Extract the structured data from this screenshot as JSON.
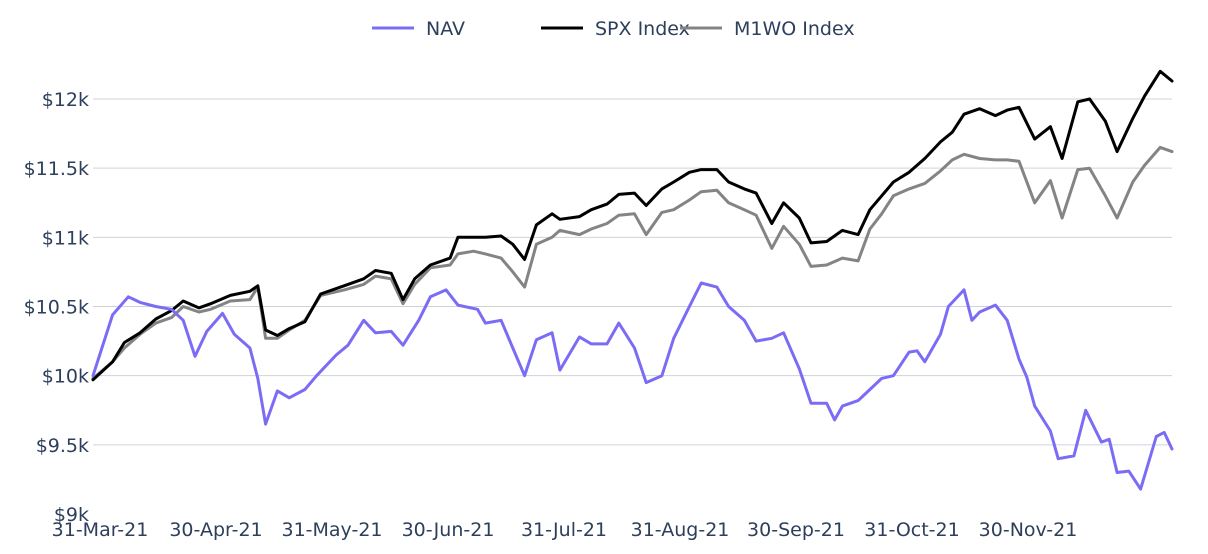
{
  "chart_data": {
    "type": "line",
    "title": "",
    "xlabel": "",
    "ylabel": "",
    "ylim": [
      9000,
      12500
    ],
    "grid": "horizontal",
    "legend_position": "top-center",
    "x_ticks": [
      "31-Mar-21",
      "30-Apr-21",
      "31-May-21",
      "30-Jun-21",
      "31-Jul-21",
      "31-Aug-21",
      "30-Sep-21",
      "31-Oct-21",
      "30-Nov-21"
    ],
    "y_ticks": [
      {
        "value": 9000,
        "label": "$9k"
      },
      {
        "value": 9500,
        "label": "$9.5k"
      },
      {
        "value": 10000,
        "label": "$10k"
      },
      {
        "value": 10500,
        "label": "$10.5k"
      },
      {
        "value": 11000,
        "label": "$11k"
      },
      {
        "value": 11500,
        "label": "$11.5k"
      },
      {
        "value": 12000,
        "label": "$12k"
      }
    ],
    "series": [
      {
        "name": "NAV",
        "color": "#7b6cf6",
        "points": [
          [
            "2021-03-31",
            10000
          ],
          [
            "2021-04-05",
            10440
          ],
          [
            "2021-04-09",
            10570
          ],
          [
            "2021-04-12",
            10530
          ],
          [
            "2021-04-16",
            10500
          ],
          [
            "2021-04-20",
            10480
          ],
          [
            "2021-04-23",
            10400
          ],
          [
            "2021-04-26",
            10140
          ],
          [
            "2021-04-29",
            10320
          ],
          [
            "2021-05-03",
            10450
          ],
          [
            "2021-05-06",
            10300
          ],
          [
            "2021-05-10",
            10200
          ],
          [
            "2021-05-12",
            9980
          ],
          [
            "2021-05-14",
            9650
          ],
          [
            "2021-05-17",
            9890
          ],
          [
            "2021-05-20",
            9840
          ],
          [
            "2021-05-24",
            9900
          ],
          [
            "2021-05-27",
            10000
          ],
          [
            "2021-06-01",
            10150
          ],
          [
            "2021-06-04",
            10220
          ],
          [
            "2021-06-08",
            10400
          ],
          [
            "2021-06-11",
            10310
          ],
          [
            "2021-06-15",
            10320
          ],
          [
            "2021-06-18",
            10220
          ],
          [
            "2021-06-22",
            10400
          ],
          [
            "2021-06-25",
            10570
          ],
          [
            "2021-06-29",
            10620
          ],
          [
            "2021-07-02",
            10510
          ],
          [
            "2021-07-07",
            10480
          ],
          [
            "2021-07-09",
            10380
          ],
          [
            "2021-07-13",
            10400
          ],
          [
            "2021-07-16",
            10200
          ],
          [
            "2021-07-19",
            10000
          ],
          [
            "2021-07-22",
            10260
          ],
          [
            "2021-07-26",
            10310
          ],
          [
            "2021-07-28",
            10040
          ],
          [
            "2021-08-02",
            10280
          ],
          [
            "2021-08-05",
            10230
          ],
          [
            "2021-08-09",
            10230
          ],
          [
            "2021-08-12",
            10380
          ],
          [
            "2021-08-16",
            10200
          ],
          [
            "2021-08-19",
            9950
          ],
          [
            "2021-08-23",
            10000
          ],
          [
            "2021-08-26",
            10270
          ],
          [
            "2021-08-30",
            10500
          ],
          [
            "2021-09-02",
            10670
          ],
          [
            "2021-09-06",
            10640
          ],
          [
            "2021-09-09",
            10500
          ],
          [
            "2021-09-13",
            10400
          ],
          [
            "2021-09-16",
            10250
          ],
          [
            "2021-09-20",
            10270
          ],
          [
            "2021-09-23",
            10310
          ],
          [
            "2021-09-27",
            10050
          ],
          [
            "2021-09-30",
            9800
          ],
          [
            "2021-10-04",
            9800
          ],
          [
            "2021-10-06",
            9680
          ],
          [
            "2021-10-08",
            9780
          ],
          [
            "2021-10-12",
            9820
          ],
          [
            "2021-10-15",
            9900
          ],
          [
            "2021-10-18",
            9980
          ],
          [
            "2021-10-21",
            10000
          ],
          [
            "2021-10-25",
            10170
          ],
          [
            "2021-10-27",
            10180
          ],
          [
            "2021-10-29",
            10100
          ],
          [
            "2021-11-02",
            10300
          ],
          [
            "2021-11-04",
            10500
          ],
          [
            "2021-11-08",
            10620
          ],
          [
            "2021-11-10",
            10400
          ],
          [
            "2021-11-12",
            10460
          ],
          [
            "2021-11-16",
            10510
          ],
          [
            "2021-11-19",
            10400
          ],
          [
            "2021-11-22",
            10120
          ],
          [
            "2021-11-24",
            9990
          ],
          [
            "2021-11-26",
            9780
          ],
          [
            "2021-11-30",
            9600
          ],
          [
            "2021-12-02",
            9400
          ],
          [
            "2021-12-06",
            9420
          ],
          [
            "2021-12-09",
            9750
          ],
          [
            "2021-12-13",
            9520
          ],
          [
            "2021-12-15",
            9540
          ],
          [
            "2021-12-17",
            9300
          ],
          [
            "2021-12-20",
            9310
          ],
          [
            "2021-12-23",
            9180
          ],
          [
            "2021-12-27",
            9560
          ],
          [
            "2021-12-29",
            9590
          ],
          [
            "2021-12-31",
            9470
          ]
        ]
      },
      {
        "name": "SPX Index",
        "color": "#000000",
        "points": [
          [
            "2021-03-31",
            9970
          ],
          [
            "2021-04-05",
            10100
          ],
          [
            "2021-04-08",
            10240
          ],
          [
            "2021-04-12",
            10310
          ],
          [
            "2021-04-16",
            10410
          ],
          [
            "2021-04-20",
            10470
          ],
          [
            "2021-04-23",
            10540
          ],
          [
            "2021-04-27",
            10490
          ],
          [
            "2021-04-30",
            10520
          ],
          [
            "2021-05-05",
            10580
          ],
          [
            "2021-05-10",
            10610
          ],
          [
            "2021-05-12",
            10650
          ],
          [
            "2021-05-14",
            10330
          ],
          [
            "2021-05-17",
            10290
          ],
          [
            "2021-05-20",
            10340
          ],
          [
            "2021-05-24",
            10390
          ],
          [
            "2021-05-28",
            10590
          ],
          [
            "2021-06-03",
            10650
          ],
          [
            "2021-06-08",
            10700
          ],
          [
            "2021-06-11",
            10760
          ],
          [
            "2021-06-15",
            10740
          ],
          [
            "2021-06-18",
            10550
          ],
          [
            "2021-06-21",
            10700
          ],
          [
            "2021-06-25",
            10800
          ],
          [
            "2021-06-30",
            10850
          ],
          [
            "2021-07-02",
            11000
          ],
          [
            "2021-07-06",
            11000
          ],
          [
            "2021-07-09",
            11000
          ],
          [
            "2021-07-13",
            11010
          ],
          [
            "2021-07-16",
            10950
          ],
          [
            "2021-07-19",
            10840
          ],
          [
            "2021-07-22",
            11090
          ],
          [
            "2021-07-26",
            11170
          ],
          [
            "2021-07-28",
            11130
          ],
          [
            "2021-08-02",
            11150
          ],
          [
            "2021-08-05",
            11200
          ],
          [
            "2021-08-09",
            11240
          ],
          [
            "2021-08-12",
            11310
          ],
          [
            "2021-08-16",
            11320
          ],
          [
            "2021-08-19",
            11230
          ],
          [
            "2021-08-23",
            11350
          ],
          [
            "2021-08-26",
            11400
          ],
          [
            "2021-08-30",
            11470
          ],
          [
            "2021-09-02",
            11490
          ],
          [
            "2021-09-06",
            11490
          ],
          [
            "2021-09-09",
            11400
          ],
          [
            "2021-09-13",
            11350
          ],
          [
            "2021-09-16",
            11320
          ],
          [
            "2021-09-20",
            11100
          ],
          [
            "2021-09-23",
            11250
          ],
          [
            "2021-09-27",
            11140
          ],
          [
            "2021-09-30",
            10960
          ],
          [
            "2021-10-04",
            10970
          ],
          [
            "2021-10-08",
            11050
          ],
          [
            "2021-10-12",
            11020
          ],
          [
            "2021-10-15",
            11200
          ],
          [
            "2021-10-18",
            11300
          ],
          [
            "2021-10-21",
            11400
          ],
          [
            "2021-10-25",
            11470
          ],
          [
            "2021-10-29",
            11570
          ],
          [
            "2021-11-02",
            11690
          ],
          [
            "2021-11-05",
            11760
          ],
          [
            "2021-11-08",
            11890
          ],
          [
            "2021-11-12",
            11930
          ],
          [
            "2021-11-16",
            11880
          ],
          [
            "2021-11-19",
            11920
          ],
          [
            "2021-11-22",
            11940
          ],
          [
            "2021-11-26",
            11710
          ],
          [
            "2021-11-30",
            11800
          ],
          [
            "2021-12-03",
            11570
          ],
          [
            "2021-12-07",
            11980
          ],
          [
            "2021-12-10",
            12000
          ],
          [
            "2021-12-14",
            11840
          ],
          [
            "2021-12-17",
            11620
          ],
          [
            "2021-12-21",
            11860
          ],
          [
            "2021-12-24",
            12020
          ],
          [
            "2021-12-28",
            12200
          ],
          [
            "2021-12-31",
            12130
          ]
        ]
      },
      {
        "name": "M1WO Index",
        "color": "#848484",
        "points": [
          [
            "2021-03-31",
            9980
          ],
          [
            "2021-04-05",
            10100
          ],
          [
            "2021-04-08",
            10200
          ],
          [
            "2021-04-12",
            10300
          ],
          [
            "2021-04-16",
            10380
          ],
          [
            "2021-04-20",
            10420
          ],
          [
            "2021-04-23",
            10500
          ],
          [
            "2021-04-27",
            10460
          ],
          [
            "2021-04-30",
            10480
          ],
          [
            "2021-05-05",
            10540
          ],
          [
            "2021-05-10",
            10550
          ],
          [
            "2021-05-12",
            10640
          ],
          [
            "2021-05-14",
            10270
          ],
          [
            "2021-05-17",
            10270
          ],
          [
            "2021-05-20",
            10330
          ],
          [
            "2021-05-24",
            10400
          ],
          [
            "2021-05-28",
            10580
          ],
          [
            "2021-06-03",
            10620
          ],
          [
            "2021-06-08",
            10660
          ],
          [
            "2021-06-11",
            10720
          ],
          [
            "2021-06-15",
            10700
          ],
          [
            "2021-06-18",
            10520
          ],
          [
            "2021-06-21",
            10660
          ],
          [
            "2021-06-25",
            10780
          ],
          [
            "2021-06-30",
            10800
          ],
          [
            "2021-07-02",
            10880
          ],
          [
            "2021-07-06",
            10900
          ],
          [
            "2021-07-09",
            10880
          ],
          [
            "2021-07-13",
            10850
          ],
          [
            "2021-07-16",
            10750
          ],
          [
            "2021-07-19",
            10640
          ],
          [
            "2021-07-22",
            10950
          ],
          [
            "2021-07-26",
            11000
          ],
          [
            "2021-07-28",
            11050
          ],
          [
            "2021-08-02",
            11020
          ],
          [
            "2021-08-05",
            11060
          ],
          [
            "2021-08-09",
            11100
          ],
          [
            "2021-08-12",
            11160
          ],
          [
            "2021-08-16",
            11170
          ],
          [
            "2021-08-19",
            11020
          ],
          [
            "2021-08-23",
            11180
          ],
          [
            "2021-08-26",
            11200
          ],
          [
            "2021-08-30",
            11270
          ],
          [
            "2021-09-02",
            11330
          ],
          [
            "2021-09-06",
            11340
          ],
          [
            "2021-09-09",
            11250
          ],
          [
            "2021-09-13",
            11200
          ],
          [
            "2021-09-16",
            11160
          ],
          [
            "2021-09-20",
            10920
          ],
          [
            "2021-09-23",
            11080
          ],
          [
            "2021-09-27",
            10950
          ],
          [
            "2021-09-30",
            10790
          ],
          [
            "2021-10-04",
            10800
          ],
          [
            "2021-10-08",
            10850
          ],
          [
            "2021-10-12",
            10830
          ],
          [
            "2021-10-15",
            11060
          ],
          [
            "2021-10-18",
            11170
          ],
          [
            "2021-10-21",
            11300
          ],
          [
            "2021-10-25",
            11350
          ],
          [
            "2021-10-29",
            11390
          ],
          [
            "2021-11-02",
            11480
          ],
          [
            "2021-11-05",
            11560
          ],
          [
            "2021-11-08",
            11600
          ],
          [
            "2021-11-12",
            11570
          ],
          [
            "2021-11-16",
            11560
          ],
          [
            "2021-11-19",
            11560
          ],
          [
            "2021-11-22",
            11550
          ],
          [
            "2021-11-26",
            11250
          ],
          [
            "2021-11-30",
            11410
          ],
          [
            "2021-12-03",
            11140
          ],
          [
            "2021-12-07",
            11490
          ],
          [
            "2021-12-10",
            11500
          ],
          [
            "2021-12-14",
            11300
          ],
          [
            "2021-12-17",
            11140
          ],
          [
            "2021-12-21",
            11400
          ],
          [
            "2021-12-24",
            11520
          ],
          [
            "2021-12-28",
            11650
          ],
          [
            "2021-12-31",
            11620
          ]
        ]
      }
    ]
  }
}
